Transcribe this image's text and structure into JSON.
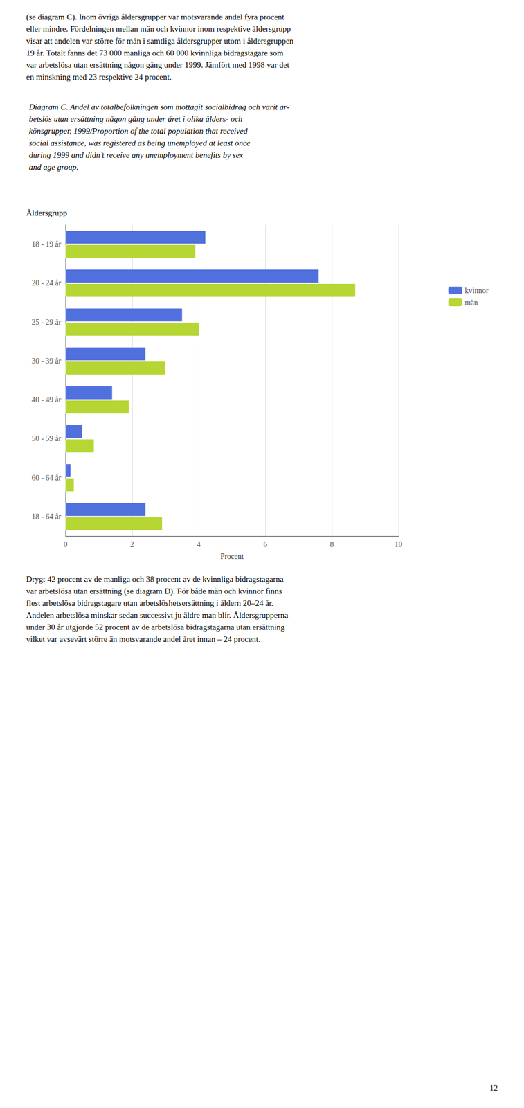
{
  "chart_data": {
    "type": "bar",
    "orientation": "horizontal",
    "title": "Diagram C. Andel av totalbefolkningen som mottagit socialbidrag och varit ar-\nbetslös utan ersättning någon gång under året i olika ålders- och\nkönsgrupper, 1999/Proportion of the total population that received\nsocial assistance, was registered as being unemployed at least once\nduring 1999 and didn’t receive any unemployment benefits by sex\nand age group.",
    "ylabel": "Åldersgrupp",
    "xlabel": "Procent",
    "categories": [
      "18 - 19 år",
      "20 - 24 år",
      "25 - 29 år",
      "30 - 39 år",
      "40 - 49 år",
      "50 - 59 år",
      "60 - 64 år",
      "18 - 64 år"
    ],
    "series": [
      {
        "name": "kvinnor",
        "values": [
          4.2,
          7.6,
          3.5,
          2.4,
          1.4,
          0.5,
          0.15,
          2.4
        ]
      },
      {
        "name": "män",
        "values": [
          3.9,
          8.7,
          4.0,
          3.0,
          1.9,
          0.85,
          0.25,
          2.9
        ]
      }
    ],
    "xlim": [
      0,
      10
    ],
    "xticks": [
      0,
      2,
      4,
      6,
      8,
      10
    ],
    "grid": true,
    "legend": "right",
    "annotations": [
      "(se diagram C). Inom övriga åldersgrupper var motsvarande andel fyra procent\neller mindre. Fördelningen mellan män och kvinnor inom respektive åldersgrupp\nvisar att andelen var större för män i samtliga åldersgrupper utom i åldersgruppen\n19 år. Totalt fanns det 73 000 manliga och 60 000 kvinnliga bidragstagare som\nvar arbetslösa utan ersättning någon gång under 1999. Jämfört med 1998 var det\nen minskning med 23 respektive 24 procent.",
      "Drygt 42 procent av de manliga och 38 procent av de kvinnliga bidragstagarna\nvar arbetslösa utan ersättning (se diagram D). För både män och kvinnor finns\nflest arbetslösa bidragstagare utan arbetslöshetsersättning i åldern 20–24 år.\nAndelen arbetslösa minskar sedan successivt ju äldre man blir. Åldersgrupperna\nunder 30 år utgjorde 52 procent av de arbetslösa bidragstagarna utan ersättning\nvilket var avsevärt större än motsvarande andel året innan – 24 procent.",
      "12"
    ]
  }
}
